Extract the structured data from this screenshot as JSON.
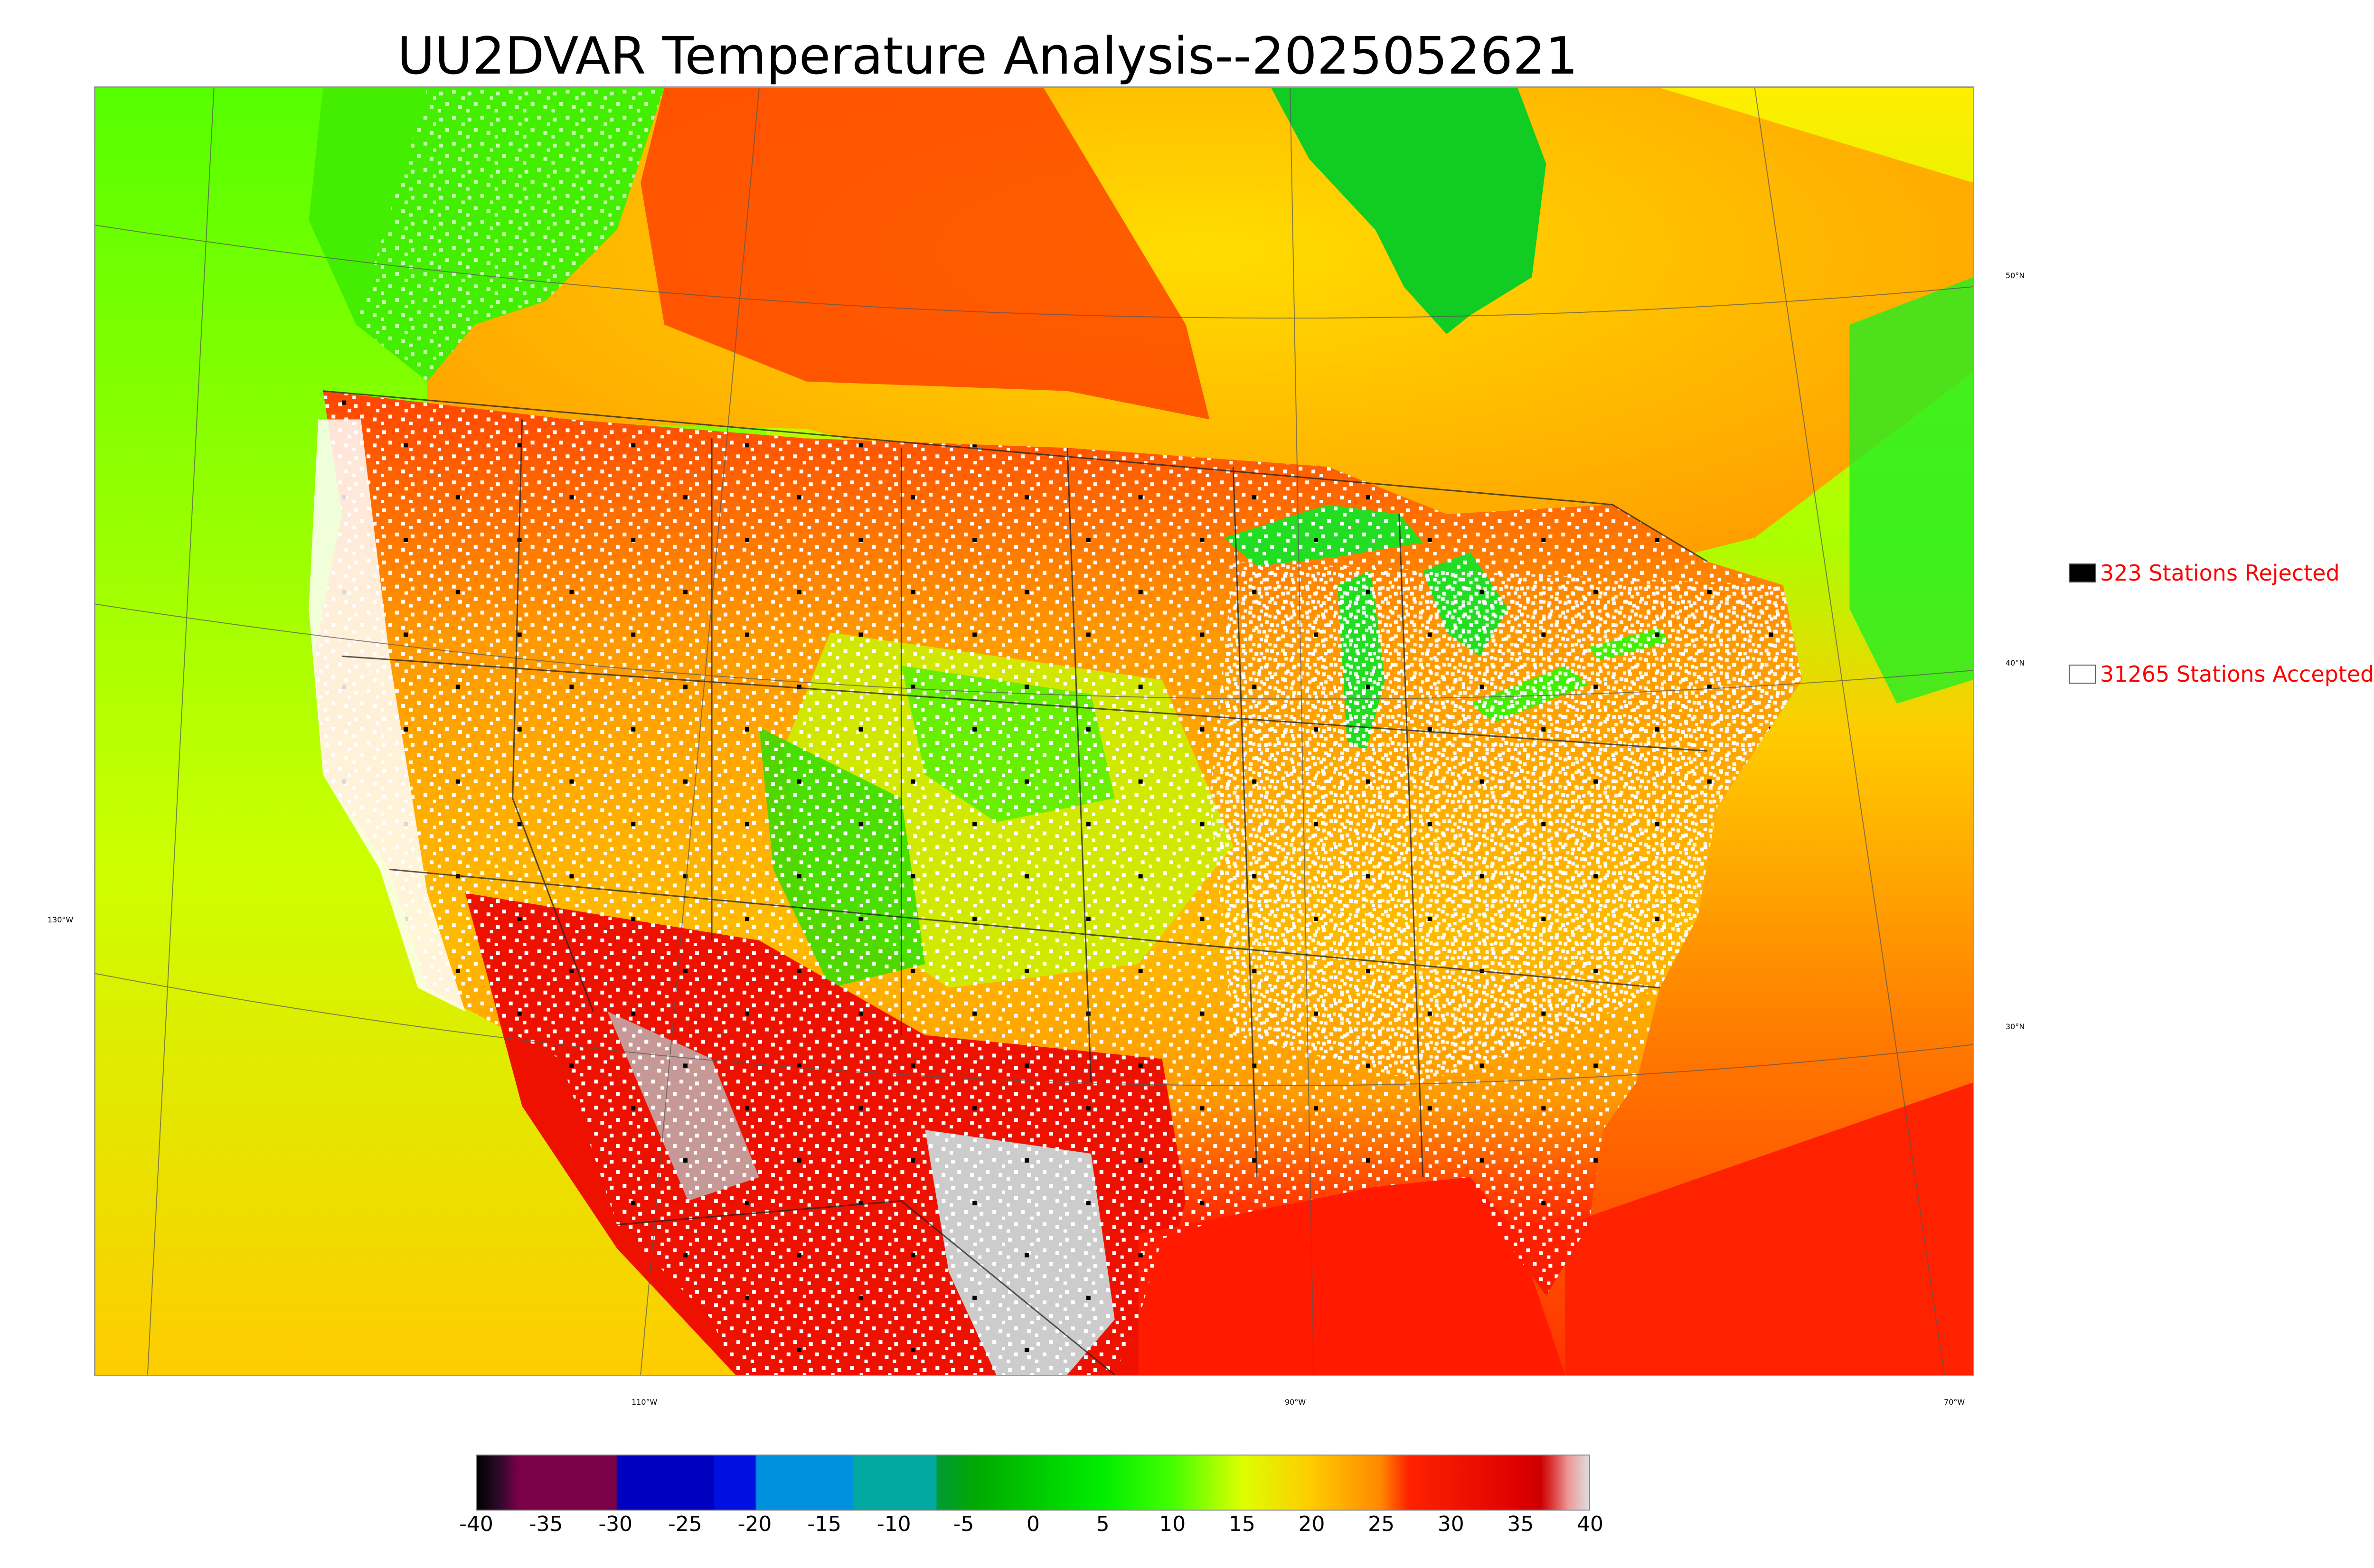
{
  "title": "UU2DVAR Temperature Analysis--2025052621",
  "map": {
    "graticule_labels": {
      "lat": [
        "50°N",
        "40°N",
        "30°N"
      ],
      "lon_left": "130°W",
      "lon_bottom": [
        "110°W",
        "90°W",
        "70°W"
      ]
    },
    "colors": {
      "ocean_gulf": "#ff1a00",
      "ocean_pacific_north": "#66ff00",
      "ocean_pacific_south": "#e8e600",
      "ocean_atlantic": "#ff9900",
      "land_north": "#ff8800",
      "land_central": "#ffcc00",
      "land_south": "#ee1100",
      "hudson_bay": "#00cc22",
      "great_lakes": "#22dd22",
      "mountains_cold": "#33cc33",
      "high_desert": "#cccccc",
      "border_line": "#333333"
    }
  },
  "legend": {
    "rejected": {
      "text": "323 Stations Rejected",
      "swatch_color": "#000000"
    },
    "accepted": {
      "text": "31265 Stations Accepted",
      "swatch_color": "#ffffff"
    }
  },
  "colorbar": {
    "ticks": [
      "-40",
      "-35",
      "-30",
      "-25",
      "-20",
      "-15",
      "-10",
      "-5",
      "0",
      "5",
      "10",
      "15",
      "20",
      "25",
      "30",
      "35",
      "40"
    ],
    "range": [
      -40,
      40
    ],
    "stops": [
      {
        "v": -40,
        "c": "#000000"
      },
      {
        "v": -38.5,
        "c": "#2a0a2a"
      },
      {
        "v": -37,
        "c": "#7a0048"
      },
      {
        "v": -30,
        "c": "#7a0048"
      },
      {
        "v": -29.9,
        "c": "#0000c0"
      },
      {
        "v": -23,
        "c": "#0000c0"
      },
      {
        "v": -22.9,
        "c": "#0010e0"
      },
      {
        "v": -20,
        "c": "#0010e0"
      },
      {
        "v": -19.9,
        "c": "#0090e0"
      },
      {
        "v": -13,
        "c": "#0090e0"
      },
      {
        "v": -12.9,
        "c": "#00a8a0"
      },
      {
        "v": -7,
        "c": "#00a8a0"
      },
      {
        "v": -6.9,
        "c": "#009933"
      },
      {
        "v": -4,
        "c": "#00aa00"
      },
      {
        "v": 5,
        "c": "#00ee00"
      },
      {
        "v": 10,
        "c": "#44ff00"
      },
      {
        "v": 15,
        "c": "#ddff00"
      },
      {
        "v": 20,
        "c": "#ffcc00"
      },
      {
        "v": 25,
        "c": "#ff8800"
      },
      {
        "v": 27,
        "c": "#ff2200"
      },
      {
        "v": 35,
        "c": "#dd0000"
      },
      {
        "v": 36.5,
        "c": "#cc0000"
      },
      {
        "v": 37.5,
        "c": "#dd4444"
      },
      {
        "v": 38.5,
        "c": "#ee9999"
      },
      {
        "v": 40,
        "c": "#dddddd"
      }
    ]
  }
}
